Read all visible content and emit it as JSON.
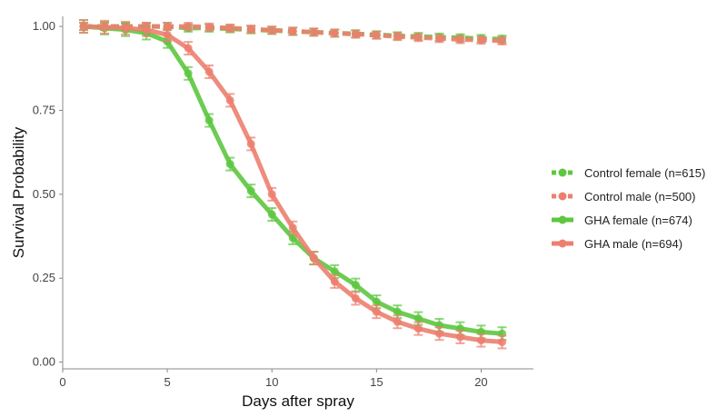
{
  "chart_data": {
    "type": "line",
    "title": "",
    "xlabel": "Days after spray",
    "ylabel": "Survival Probability",
    "xlim": [
      0,
      22.5
    ],
    "ylim": [
      -0.02,
      1.03
    ],
    "x_ticks": [
      0,
      5,
      10,
      15,
      20
    ],
    "x_tick_labels": [
      "0",
      "5",
      "10",
      "15",
      "20"
    ],
    "y_ticks": [
      0.0,
      0.25,
      0.5,
      0.75,
      1.0
    ],
    "y_tick_labels": [
      "0.00",
      "0.25",
      "0.50",
      "0.75",
      "1.00"
    ],
    "grid": false,
    "legend_position": "right",
    "x": [
      1,
      2,
      3,
      4,
      5,
      6,
      7,
      8,
      9,
      10,
      11,
      12,
      13,
      14,
      15,
      16,
      17,
      18,
      19,
      20,
      21
    ],
    "series": [
      {
        "name": "Control female (n=615)",
        "color": "#5dc73f",
        "style": "dashed",
        "values": [
          1.0,
          1.0,
          1.0,
          1.0,
          1.0,
          0.995,
          0.995,
          0.993,
          0.99,
          0.988,
          0.985,
          0.983,
          0.98,
          0.978,
          0.975,
          0.972,
          0.97,
          0.968,
          0.966,
          0.964,
          0.962
        ]
      },
      {
        "name": "Control male (n=500)",
        "color": "#ec7f6f",
        "style": "dashed",
        "values": [
          1.0,
          1.0,
          1.0,
          1.0,
          1.0,
          1.0,
          0.998,
          0.995,
          0.992,
          0.989,
          0.986,
          0.983,
          0.98,
          0.977,
          0.974,
          0.97,
          0.967,
          0.964,
          0.961,
          0.959,
          0.957
        ]
      },
      {
        "name": "GHA female (n=674)",
        "color": "#5dc73f",
        "style": "solid",
        "values": [
          1.0,
          0.995,
          0.99,
          0.98,
          0.955,
          0.86,
          0.72,
          0.59,
          0.51,
          0.44,
          0.37,
          0.31,
          0.27,
          0.23,
          0.18,
          0.15,
          0.13,
          0.11,
          0.1,
          0.09,
          0.085
        ]
      },
      {
        "name": "GHA male (n=694)",
        "color": "#ec7f6f",
        "style": "solid",
        "values": [
          1.0,
          0.998,
          0.995,
          0.99,
          0.975,
          0.935,
          0.865,
          0.78,
          0.65,
          0.5,
          0.4,
          0.31,
          0.24,
          0.19,
          0.15,
          0.12,
          0.1,
          0.085,
          0.075,
          0.065,
          0.06
        ]
      }
    ]
  }
}
